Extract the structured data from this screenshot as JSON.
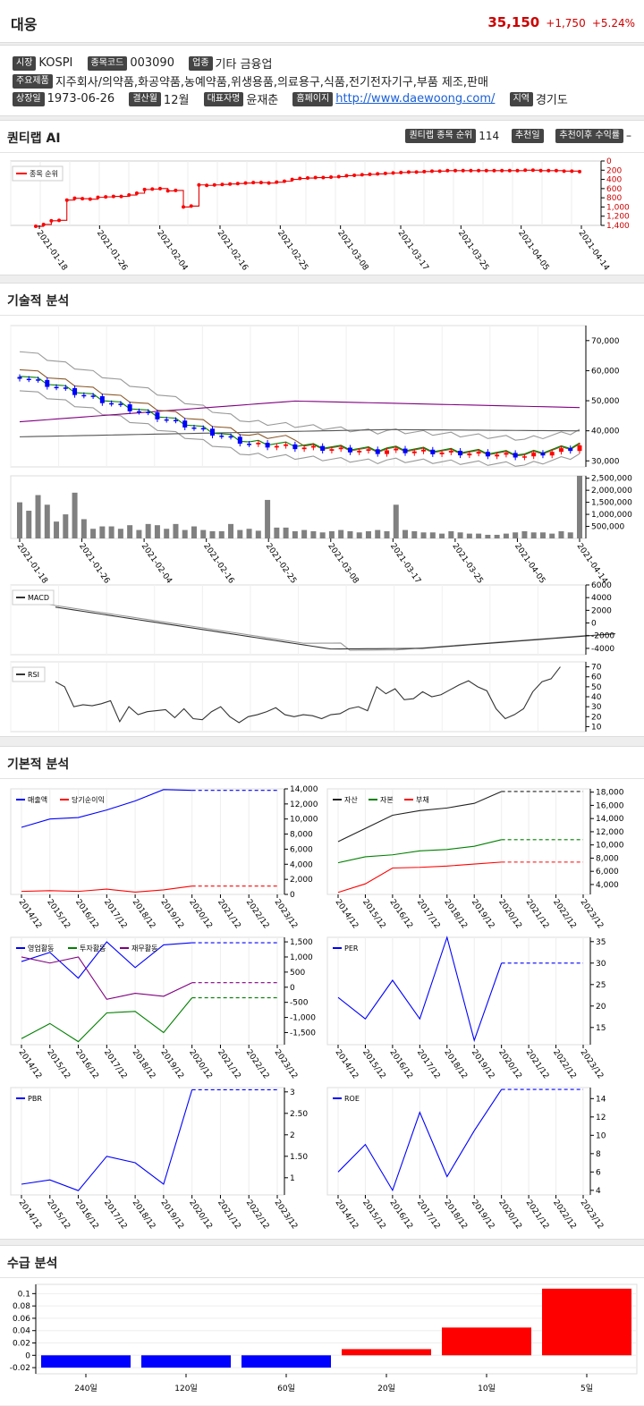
{
  "stock": {
    "name": "대웅",
    "price": "35,150",
    "change": "+1,750",
    "pct": "+5.24%"
  },
  "info": {
    "market_label": "시장",
    "market": "KOSPI",
    "code_label": "종목코드",
    "code": "003090",
    "sector_label": "업종",
    "sector": "기타 금융업",
    "products_label": "주요제품",
    "products": "지주회사/의약품,화공약품,농예약품,위생용품,의료용구,식품,전기전자기구,부품 제조,판매",
    "listed_label": "상장일",
    "listed": "1973-06-26",
    "fy_label": "결산월",
    "fy": "12월",
    "ceo_label": "대표자명",
    "ceo": "윤재춘",
    "home_label": "홈페이지",
    "home": "http://www.daewoong.com/",
    "region_label": "지역",
    "region": "경기도"
  },
  "ai": {
    "title": "퀀티랩 AI",
    "rank_label": "퀀티랩 종목 순위",
    "rank": "114",
    "rec_day_label": "추천일",
    "rec_return_label": "추천이후 수익률",
    "rec_return": "–",
    "legend": "종목 순위"
  },
  "sections": {
    "tech": "기술적 분석",
    "fund": "기본적 분석",
    "supply": "수급 분석"
  },
  "dates": [
    "2021-01-18",
    "2021-01-26",
    "2021-02-04",
    "2021-02-16",
    "2021-02-25",
    "2021-03-08",
    "2021-03-17",
    "2021-03-25",
    "2021-04-05",
    "2021-04-14"
  ],
  "colors": {
    "up": "#ff0000",
    "down": "#0000ff",
    "price": "#cc0000"
  },
  "chart_data": [
    {
      "type": "line",
      "title": "종목 순위",
      "ylim": [
        1400,
        0
      ],
      "yticks": [
        "0",
        "200",
        "400",
        "600",
        "800",
        "1,000",
        "1,200",
        "1,400"
      ],
      "series": [
        {
          "name": "종목 순위",
          "values": [
            1420,
            1380,
            1300,
            1290,
            850,
            810,
            820,
            830,
            790,
            780,
            770,
            770,
            740,
            700,
            620,
            610,
            600,
            650,
            640,
            1000,
            980,
            520,
            530,
            520,
            510,
            500,
            490,
            480,
            470,
            470,
            480,
            460,
            440,
            400,
            380,
            370,
            360,
            360,
            350,
            340,
            320,
            310,
            300,
            290,
            280,
            270,
            260,
            250,
            240,
            240,
            230,
            220,
            220,
            210,
            210,
            210,
            210,
            210,
            210,
            210,
            210,
            210,
            210,
            200,
            200,
            210,
            210,
            210,
            220,
            220,
            230
          ]
        }
      ]
    },
    {
      "type": "candlestick",
      "yticks": [
        "30,000",
        "40,000",
        "50,000",
        "60,000",
        "70,000"
      ],
      "ylim": [
        28000,
        75000
      ]
    },
    {
      "type": "bar",
      "yticks": [
        "500,000",
        "1,000,000",
        "1,500,000",
        "2,000,000",
        "2,500,000"
      ],
      "ylim": [
        0,
        2600000
      ]
    },
    {
      "type": "line",
      "legend": "MACD",
      "yticks": [
        "6000",
        "4000",
        "2000",
        "0",
        "-2000",
        "-4000"
      ],
      "ylim": [
        -5000,
        6000
      ]
    },
    {
      "type": "line",
      "legend": "RSI",
      "yticks": [
        "70",
        "60",
        "50",
        "40",
        "30",
        "20",
        "10"
      ],
      "ylim": [
        5,
        75
      ]
    },
    {
      "type": "line",
      "x": [
        "2014/12",
        "2015/12",
        "2016/12",
        "2017/12",
        "2018/12",
        "2019/12",
        "2020/12",
        "2021/12",
        "2022/12",
        "2023/12"
      ],
      "series": [
        {
          "name": "매출액",
          "values": [
            8900,
            10000,
            10200,
            11200,
            12400,
            13900,
            13800,
            13800,
            13800,
            13800
          ]
        },
        {
          "name": "당기순이익",
          "values": [
            400,
            500,
            400,
            700,
            300,
            600,
            1100,
            1100,
            1100,
            1100
          ]
        }
      ],
      "yticks": [
        "0",
        "2,000",
        "4,000",
        "6,000",
        "8,000",
        "10,000",
        "12,000",
        "14,000"
      ],
      "ylim": [
        0,
        14000
      ]
    },
    {
      "type": "line",
      "x": [
        "2014/12",
        "2015/12",
        "2016/12",
        "2017/12",
        "2018/12",
        "2019/12",
        "2020/12",
        "2021/12",
        "2022/12",
        "2023/12"
      ],
      "series": [
        {
          "name": "자산",
          "values": [
            10500,
            12500,
            14500,
            15200,
            15600,
            16300,
            18100,
            18100,
            18100,
            18100
          ]
        },
        {
          "name": "자본",
          "values": [
            7300,
            8200,
            8500,
            9100,
            9300,
            9800,
            10800,
            10800,
            10800,
            10800
          ]
        },
        {
          "name": "부채",
          "values": [
            2800,
            4100,
            6500,
            6600,
            6800,
            7100,
            7400,
            7400,
            7400,
            7400
          ]
        }
      ],
      "yticks": [
        "4,000",
        "6,000",
        "8,000",
        "10,000",
        "12,000",
        "14,000",
        "16,000",
        "18,000"
      ],
      "ylim": [
        2500,
        18500
      ]
    },
    {
      "type": "line",
      "x": [
        "2014/12",
        "2015/12",
        "2016/12",
        "2017/12",
        "2018/12",
        "2019/12",
        "2020/12",
        "2021/12",
        "2022/12",
        "2023/12"
      ],
      "series": [
        {
          "name": "영업활동",
          "values": [
            850,
            1150,
            300,
            1500,
            650,
            1400,
            1470,
            1470,
            1470,
            1470
          ]
        },
        {
          "name": "투자활동",
          "values": [
            -1700,
            -1200,
            -1800,
            -850,
            -800,
            -1500,
            -350,
            -350,
            -350,
            -350
          ]
        },
        {
          "name": "재무활동",
          "values": [
            1000,
            800,
            1000,
            -400,
            -200,
            -300,
            150,
            150,
            150,
            150
          ]
        }
      ],
      "yticks": [
        "-1,500",
        "-1,000",
        "-500",
        "0",
        "500",
        "1,000",
        "1,500"
      ],
      "ylim": [
        -1900,
        1650
      ]
    },
    {
      "type": "line",
      "x": [
        "2014/12",
        "2015/12",
        "2016/12",
        "2017/12",
        "2018/12",
        "2019/12",
        "2020/12",
        "2021/12",
        "2022/12",
        "2023/12"
      ],
      "series": [
        {
          "name": "PER",
          "values": [
            22,
            17,
            26,
            17,
            36,
            12,
            30,
            30,
            30,
            30
          ]
        }
      ],
      "yticks": [
        "15",
        "20",
        "25",
        "30",
        "35"
      ],
      "ylim": [
        11,
        36
      ]
    },
    {
      "type": "line",
      "x": [
        "2014/12",
        "2015/12",
        "2016/12",
        "2017/12",
        "2018/12",
        "2019/12",
        "2020/12",
        "2021/12",
        "2022/12",
        "2023/12"
      ],
      "series": [
        {
          "name": "PBR",
          "values": [
            0.85,
            0.95,
            0.7,
            1.5,
            1.35,
            0.85,
            3.05,
            3.05,
            3.05,
            3.05
          ]
        }
      ],
      "yticks": [
        "1",
        "1.50",
        "2",
        "2.50",
        "3"
      ],
      "ylim": [
        0.6,
        3.1
      ]
    },
    {
      "type": "line",
      "x": [
        "2014/12",
        "2015/12",
        "2016/12",
        "2017/12",
        "2018/12",
        "2019/12",
        "2020/12",
        "2021/12",
        "2022/12",
        "2023/12"
      ],
      "series": [
        {
          "name": "ROE",
          "values": [
            6,
            9,
            4,
            12.5,
            5.5,
            10.5,
            15,
            15,
            15,
            15
          ]
        }
      ],
      "yticks": [
        "4",
        "6",
        "8",
        "10",
        "12",
        "14"
      ],
      "ylim": [
        3.5,
        15.2
      ]
    },
    {
      "type": "bar",
      "categories": [
        "240일",
        "120일",
        "60일",
        "20일",
        "10일",
        "5일"
      ],
      "values": [
        -0.02,
        -0.02,
        -0.02,
        0.01,
        0.045,
        0.108
      ],
      "yticks": [
        "-0.02",
        "0",
        "0.02",
        "0.04",
        "0.06",
        "0.08",
        "0.1"
      ],
      "ylim": [
        -0.03,
        0.115
      ]
    }
  ]
}
